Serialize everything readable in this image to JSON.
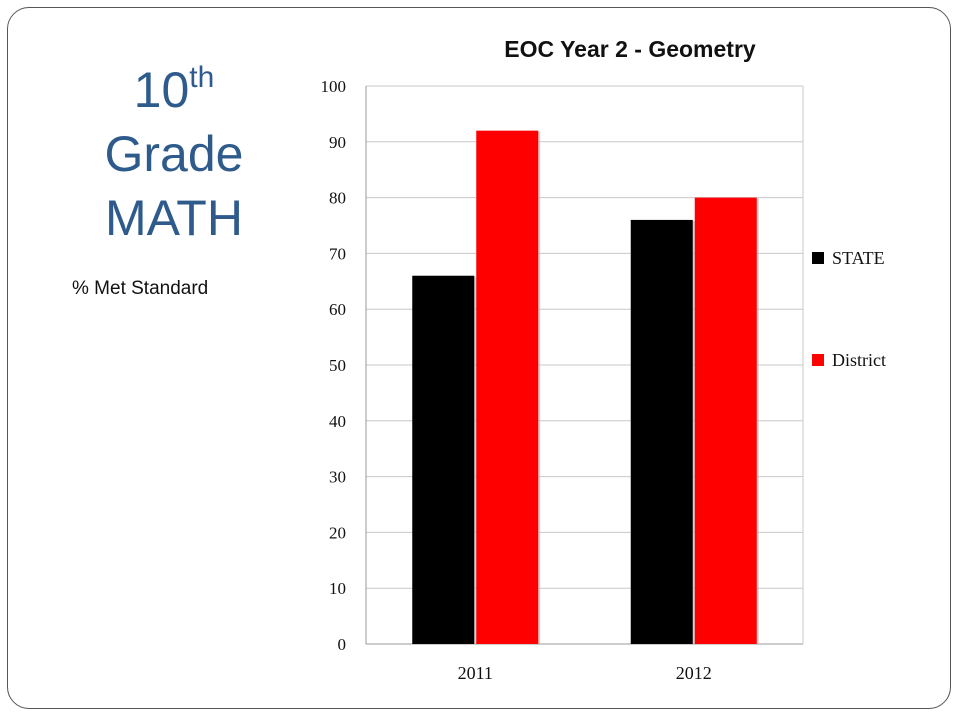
{
  "slide": {
    "grade_number": "10",
    "grade_suffix": "th",
    "grade_word": "Grade",
    "subject": "MATH",
    "subtitle": "% Met Standard"
  },
  "chart_data": {
    "type": "bar",
    "title": "EOC Year 2 - Geometry",
    "categories": [
      "2011",
      "2012"
    ],
    "series": [
      {
        "name": "STATE",
        "values": [
          66,
          76
        ],
        "color": "#000000"
      },
      {
        "name": "District",
        "values": [
          92,
          80
        ],
        "color": "#ff0000"
      }
    ],
    "ylim": [
      0,
      100
    ],
    "yticks": [
      "0",
      "10",
      "20",
      "30",
      "40",
      "50",
      "60",
      "70",
      "80",
      "90",
      "100"
    ],
    "xlabel": "",
    "ylabel": "",
    "grid": true,
    "legend_position": "right"
  }
}
